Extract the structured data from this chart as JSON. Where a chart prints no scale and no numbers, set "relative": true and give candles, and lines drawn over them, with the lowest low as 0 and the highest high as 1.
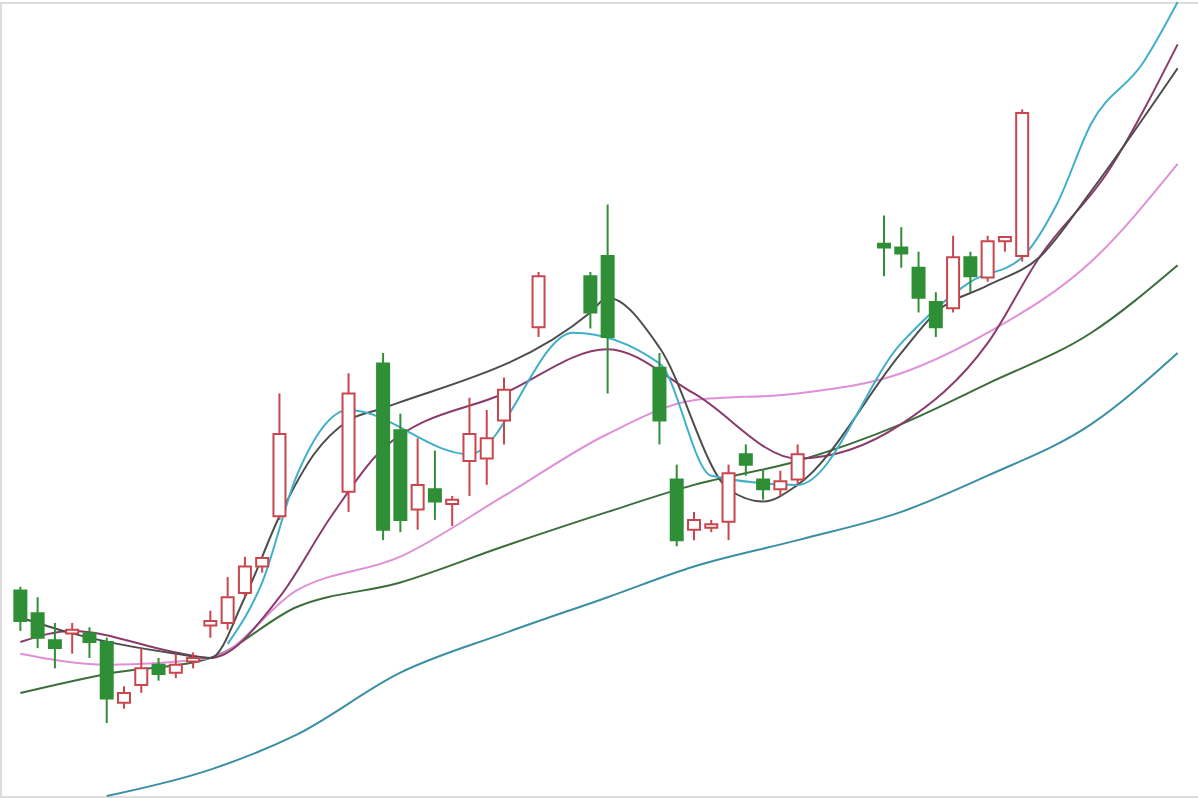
{
  "chart_data": {
    "type": "candlestick",
    "relative": true,
    "categories": [
      null,
      null,
      null,
      null,
      null,
      null,
      null,
      null,
      null,
      null,
      null,
      null,
      null,
      null,
      null,
      null,
      null,
      null,
      null,
      null,
      null,
      null,
      null,
      null,
      null,
      null,
      null,
      null,
      null,
      null,
      null,
      null,
      null,
      null,
      null,
      null,
      null,
      null,
      null,
      null,
      null,
      null,
      null,
      null,
      null,
      null,
      null,
      null,
      null,
      null,
      null,
      null,
      null,
      null,
      null,
      null,
      null,
      null,
      null,
      null,
      null,
      null,
      null,
      null,
      null,
      null,
      null,
      null
    ],
    "ohlc": [
      [
        0.216,
        0.222,
        0.15,
        0.166
      ],
      [
        0.179,
        0.205,
        0.122,
        0.139
      ],
      [
        0.135,
        0.163,
        0.089,
        0.122
      ],
      [
        0.146,
        0.163,
        0.113,
        0.152
      ],
      [
        0.146,
        0.156,
        0.106,
        0.132
      ],
      [
        0.132,
        0.139,
        0,
        0.04
      ],
      [
        0.033,
        0.06,
        0.023,
        0.049
      ],
      [
        0.062,
        0.122,
        0.049,
        0.089
      ],
      [
        0.095,
        0.106,
        0.069,
        0.08
      ],
      [
        0.082,
        0.113,
        0.073,
        0.095
      ],
      [
        0.1,
        0.115,
        0.089,
        0.106
      ],
      [
        0.159,
        0.183,
        0.139,
        0.166
      ],
      [
        0.163,
        0.238,
        0.152,
        0.205
      ],
      [
        0.212,
        0.271,
        0.205,
        0.255
      ],
      [
        0.255,
        0.271,
        0.245,
        0.269
      ],
      [
        0.337,
        0.537,
        0.331,
        0.471
      ],
      null,
      null,
      null,
      [
        0.377,
        0.57,
        0.344,
        0.537
      ],
      null,
      [
        0.586,
        0.603,
        0.298,
        0.315
      ],
      [
        0.477,
        0.504,
        0.311,
        0.331
      ],
      [
        0.348,
        0.464,
        0.315,
        0.388
      ],
      [
        0.381,
        0.444,
        0.331,
        0.361
      ],
      [
        0.357,
        0.37,
        0.321,
        0.364
      ],
      [
        0.427,
        0.53,
        0.37,
        0.471
      ],
      [
        0.431,
        0.51,
        0.388,
        0.464
      ],
      [
        0.493,
        0.563,
        0.454,
        0.543
      ],
      null,
      [
        0.645,
        0.735,
        0.629,
        0.728
      ],
      null,
      null,
      [
        0.728,
        0.735,
        0.643,
        0.669
      ],
      [
        0.761,
        0.845,
        0.537,
        0.629
      ],
      null,
      null,
      [
        0.579,
        0.603,
        0.454,
        0.493
      ],
      [
        0.397,
        0.421,
        0.288,
        0.298
      ],
      [
        0.315,
        0.344,
        0.298,
        0.331
      ],
      [
        0.318,
        0.331,
        0.311,
        0.324
      ],
      [
        0.328,
        0.421,
        0.298,
        0.407
      ],
      [
        0.438,
        0.454,
        0.403,
        0.421
      ],
      [
        0.397,
        0.414,
        0.364,
        0.381
      ],
      [
        0.381,
        0.411,
        0.37,
        0.394
      ],
      [
        0.397,
        0.454,
        0.388,
        0.438
      ],
      null,
      null,
      null,
      null,
      [
        0.781,
        0.827,
        0.728,
        0.775
      ],
      [
        0.775,
        0.808,
        0.742,
        0.765
      ],
      [
        0.742,
        0.768,
        0.669,
        0.693
      ],
      [
        0.686,
        0.702,
        0.629,
        0.645
      ],
      [
        0.676,
        0.794,
        0.669,
        0.759
      ],
      [
        0.759,
        0.768,
        0.702,
        0.728
      ],
      [
        0.726,
        0.794,
        0.719,
        0.785
      ],
      [
        0.785,
        0.792,
        0.768,
        0.792
      ],
      [
        0.761,
        1,
        0.752,
        0.994
      ],
      null,
      null,
      null,
      null,
      null,
      null,
      null,
      null,
      null
    ],
    "colors": [
      "#2f8f36",
      "#2f8f36",
      "#2f8f36",
      "#c9464e",
      "#2f8f36",
      "#2f8f36",
      "#c9464e",
      "#c9464e",
      "#2f8f36",
      "#c9464e",
      "#c9464e",
      "#c9464e",
      "#c9464e",
      "#c9464e",
      "#c9464e",
      "#c9464e",
      null,
      null,
      null,
      "#c9464e",
      null,
      "#2f8f36",
      "#2f8f36",
      "#c9464e",
      "#2f8f36",
      "#c9464e",
      "#c9464e",
      "#c9464e",
      "#c9464e",
      null,
      "#c9464e",
      null,
      null,
      "#2f8f36",
      "#2f8f36",
      null,
      null,
      "#2f8f36",
      "#2f8f36",
      "#c9464e",
      "#c9464e",
      "#c9464e",
      "#2f8f36",
      "#2f8f36",
      "#c9464e",
      "#c9464e",
      null,
      null,
      null,
      null,
      "#2f8f36",
      "#2f8f36",
      "#2f8f36",
      "#2f8f36",
      "#c9464e",
      "#2f8f36",
      "#c9464e",
      "#c9464e",
      "#c9464e",
      null,
      null,
      null,
      null,
      null,
      null,
      null,
      null,
      null
    ],
    "series": [
      {
        "type": "line",
        "color": "#3a8fa3",
        "values": [
          null,
          null,
          null,
          null,
          null,
          -0.119,
          null,
          null,
          null,
          null,
          null,
          -0.076,
          null,
          null,
          null,
          null,
          -0.019,
          null,
          null,
          null,
          null,
          null,
          0.082,
          null,
          null,
          null,
          null,
          null,
          0.146,
          null,
          null,
          null,
          null,
          null,
          0.205,
          null,
          null,
          null,
          null,
          0.255,
          null,
          null,
          null,
          null,
          null,
          0.298,
          null,
          null,
          null,
          null,
          null,
          0.344,
          null,
          null,
          null,
          null,
          0.403,
          null,
          null,
          null,
          null,
          null,
          0.487,
          null,
          null,
          null,
          null,
          0.603
        ]
      },
      {
        "type": "line",
        "color": "#3b6e3b",
        "values": [
          0.049,
          null,
          null,
          null,
          null,
          0.08,
          null,
          null,
          null,
          null,
          null,
          0.106,
          null,
          null,
          null,
          null,
          0.189,
          null,
          null,
          null,
          null,
          null,
          0.229,
          null,
          null,
          null,
          null,
          null,
          0.288,
          null,
          null,
          null,
          null,
          null,
          0.344,
          null,
          null,
          null,
          null,
          0.388,
          null,
          null,
          null,
          null,
          null,
          0.427,
          null,
          null,
          null,
          null,
          null,
          0.487,
          null,
          null,
          null,
          null,
          0.553,
          null,
          null,
          null,
          null,
          null,
          0.636,
          null,
          null,
          null,
          null,
          0.746
        ]
      },
      {
        "type": "line",
        "color": "#e090d8",
        "values": [
          0.113,
          null,
          null,
          null,
          null,
          0.095,
          null,
          null,
          null,
          null,
          null,
          0.106,
          null,
          null,
          null,
          null,
          0.216,
          null,
          null,
          null,
          null,
          null,
          0.271,
          null,
          null,
          null,
          null,
          null,
          0.37,
          null,
          null,
          null,
          null,
          null,
          0.471,
          null,
          null,
          null,
          null,
          0.526,
          null,
          null,
          null,
          null,
          null,
          0.537,
          null,
          null,
          null,
          null,
          null,
          0.57,
          null,
          null,
          null,
          null,
          0.636,
          null,
          null,
          null,
          null,
          null,
          0.752,
          null,
          null,
          null,
          null,
          0.911
        ]
      },
      {
        "type": "line",
        "color": "#8b3a6b",
        "values": [
          0.132,
          null,
          null,
          0.15,
          null,
          null,
          null,
          null,
          null,
          0.115,
          null,
          0.106,
          null,
          null,
          null,
          0.205,
          null,
          null,
          0.337,
          null,
          null,
          0.447,
          null,
          null,
          null,
          null,
          null,
          null,
          0.537,
          null,
          null,
          null,
          null,
          null,
          0.609,
          null,
          null,
          null,
          null,
          0.537,
          null,
          null,
          null,
          null,
          null,
          0.431,
          null,
          null,
          null,
          null,
          null,
          0.487,
          null,
          null,
          null,
          null,
          0.619,
          null,
          null,
          0.759,
          null,
          null,
          null,
          0.9,
          null,
          null,
          null,
          1.106
        ]
      },
      {
        "type": "line",
        "color": "#4d4d4d",
        "values": [
          0.172,
          null,
          null,
          0.146,
          null,
          null,
          null,
          null,
          null,
          0.113,
          null,
          0.106,
          null,
          0.205,
          null,
          0.337,
          null,
          0.438,
          null,
          0.493,
          null,
          0.513,
          null,
          null,
          null,
          null,
          null,
          null,
          null,
          null,
          null,
          null,
          null,
          0.669,
          0.693,
          null,
          null,
          0.612,
          null,
          null,
          null,
          0.381,
          null,
          0.361,
          null,
          0.388,
          null,
          null,
          null,
          null,
          null,
          0.603,
          null,
          0.669,
          null,
          null,
          0.713,
          null,
          null,
          0.759,
          null,
          null,
          0.867,
          null,
          null,
          null,
          null,
          1.067
        ]
      },
      {
        "type": "line",
        "color": "#3fb0c8",
        "values": [
          null,
          null,
          null,
          null,
          null,
          null,
          null,
          null,
          null,
          null,
          null,
          null,
          0.129,
          null,
          0.229,
          null,
          0.403,
          null,
          null,
          0.51,
          null,
          null,
          null,
          null,
          null,
          null,
          0.438,
          null,
          null,
          null,
          null,
          null,
          0.636,
          null,
          null,
          null,
          null,
          0.586,
          null,
          null,
          0.403,
          null,
          null,
          null,
          null,
          0.388,
          null,
          null,
          null,
          null,
          null,
          0.619,
          null,
          null,
          null,
          0.719,
          null,
          null,
          0.759,
          null,
          0.845,
          null,
          0.977,
          null,
          null,
          1.076,
          null,
          1.175
        ]
      }
    ]
  }
}
